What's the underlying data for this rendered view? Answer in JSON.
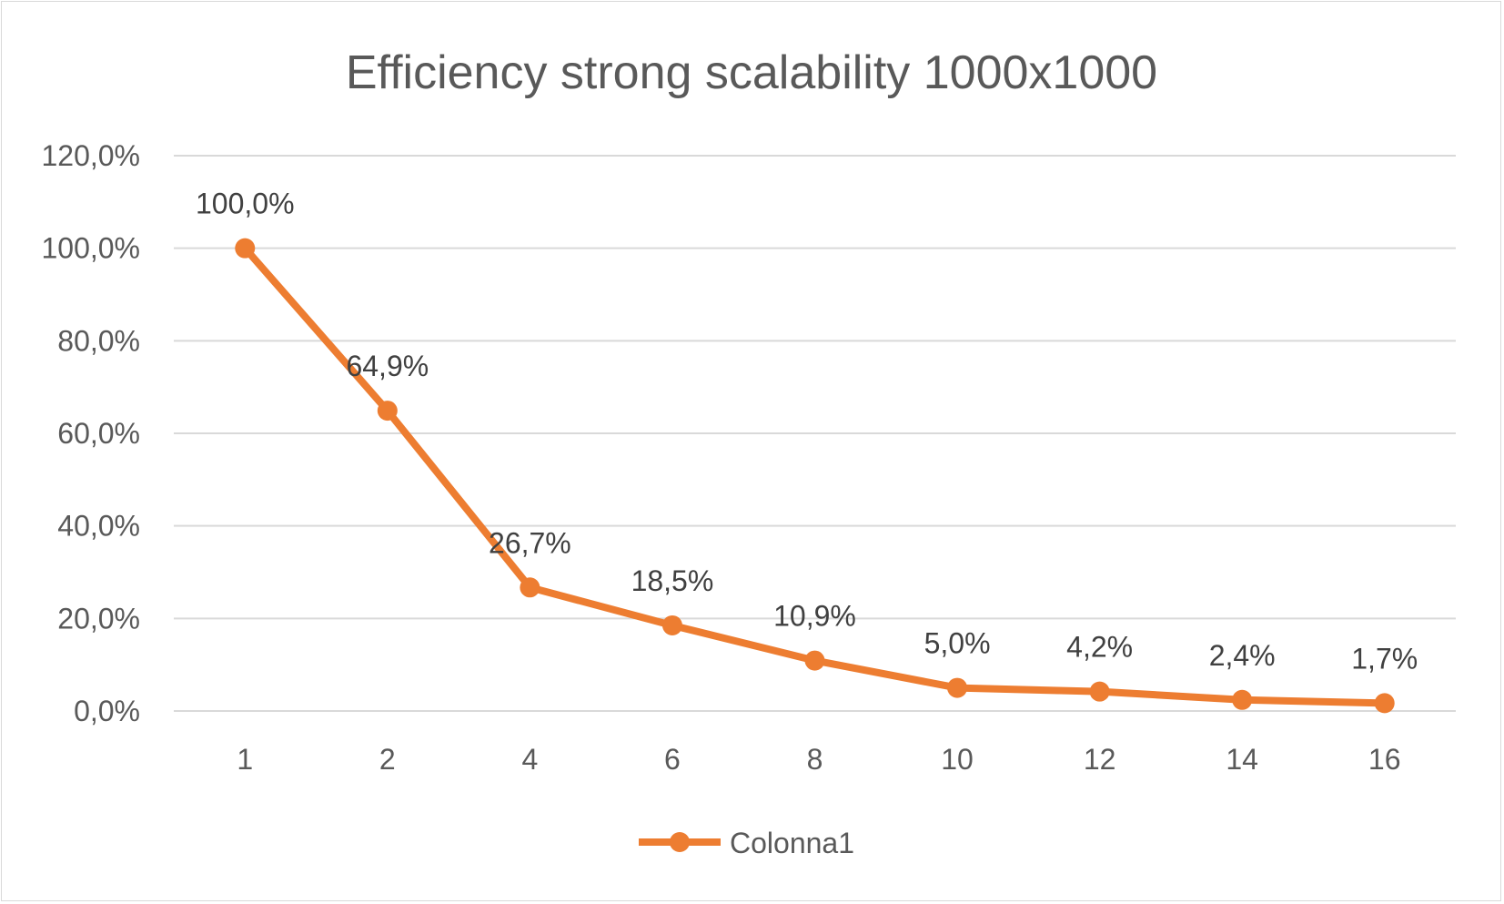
{
  "chart_data": {
    "type": "line",
    "title": "Efficiency strong scalability 1000x1000",
    "xlabel": "",
    "ylabel": "",
    "categories": [
      "1",
      "2",
      "4",
      "6",
      "8",
      "10",
      "12",
      "14",
      "16"
    ],
    "series": [
      {
        "name": "Colonna1",
        "values": [
          100.0,
          64.9,
          26.7,
          18.5,
          10.9,
          5.0,
          4.2,
          2.4,
          1.7
        ],
        "labels": [
          "100,0%",
          "64,9%",
          "26,7%",
          "18,5%",
          "10,9%",
          "5,0%",
          "4,2%",
          "2,4%",
          "1,7%"
        ],
        "color": "#ED7D31"
      }
    ],
    "ylim": [
      0,
      120
    ],
    "yticks": [
      "0,0%",
      "20,0%",
      "40,0%",
      "60,0%",
      "80,0%",
      "100,0%",
      "120,0%"
    ],
    "grid": true,
    "legend": "bottom"
  },
  "colors": {
    "gridline": "#d9d9d9",
    "text": "#595959"
  }
}
